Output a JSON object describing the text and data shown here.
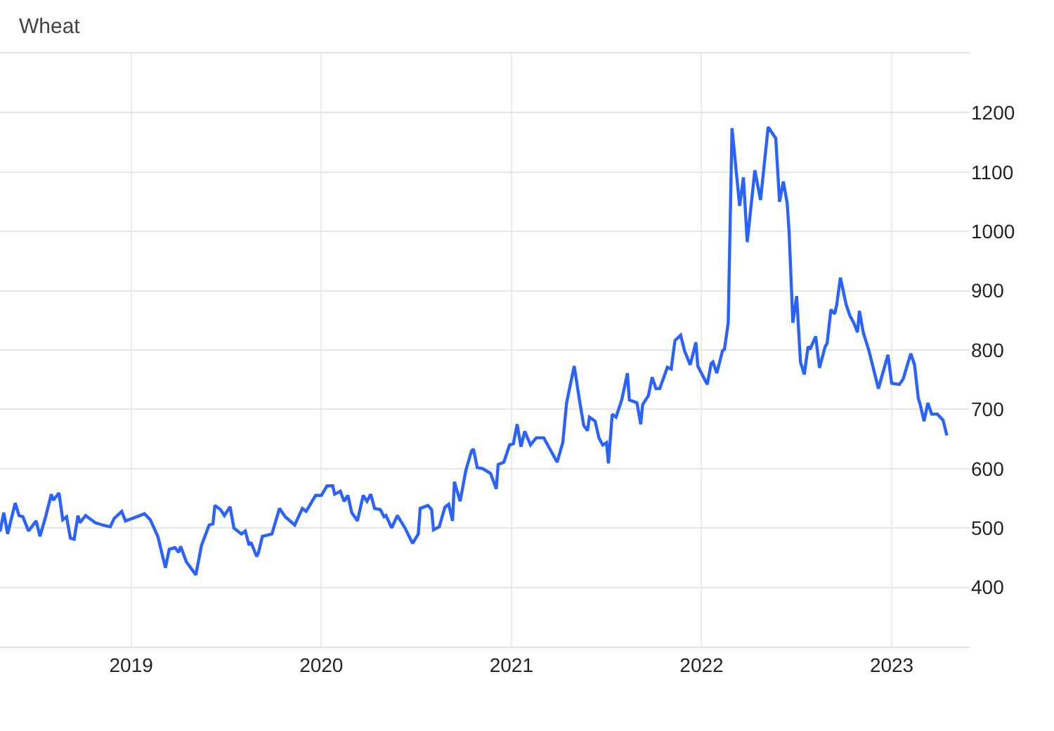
{
  "chart_data": {
    "type": "line",
    "title": "Wheat",
    "x": [
      2018.31,
      2018.33,
      2018.35,
      2018.39,
      2018.41,
      2018.43,
      2018.46,
      2018.5,
      2018.52,
      2018.55,
      2018.58,
      2018.59,
      2018.62,
      2018.64,
      2018.66,
      2018.68,
      2018.7,
      2018.72,
      2018.73,
      2018.76,
      2018.81,
      2018.85,
      2018.89,
      2018.91,
      2018.95,
      2018.97,
      2019.03,
      2019.07,
      2019.1,
      2019.14,
      2019.18,
      2019.2,
      2019.23,
      2019.25,
      2019.26,
      2019.29,
      2019.34,
      2019.37,
      2019.41,
      2019.43,
      2019.44,
      2019.47,
      2019.49,
      2019.52,
      2019.54,
      2019.58,
      2019.6,
      2019.62,
      2019.63,
      2019.66,
      2019.67,
      2019.69,
      2019.74,
      2019.78,
      2019.81,
      2019.86,
      2019.9,
      2019.92,
      2019.97,
      2020.0,
      2020.03,
      2020.06,
      2020.07,
      2020.1,
      2020.12,
      2020.14,
      2020.16,
      2020.19,
      2020.22,
      2020.24,
      2020.26,
      2020.28,
      2020.31,
      2020.33,
      2020.34,
      2020.37,
      2020.4,
      2020.44,
      2020.48,
      2020.51,
      2020.52,
      2020.56,
      2020.58,
      2020.59,
      2020.62,
      2020.65,
      2020.67,
      2020.69,
      2020.7,
      2020.73,
      2020.76,
      2020.79,
      2020.8,
      2020.82,
      2020.85,
      2020.89,
      2020.92,
      2020.93,
      2020.96,
      2020.99,
      2021.01,
      2021.03,
      2021.05,
      2021.07,
      2021.1,
      2021.13,
      2021.17,
      2021.24,
      2021.27,
      2021.29,
      2021.33,
      2021.36,
      2021.38,
      2021.4,
      2021.41,
      2021.44,
      2021.46,
      2021.48,
      2021.5,
      2021.51,
      2021.53,
      2021.55,
      2021.58,
      2021.61,
      2021.62,
      2021.66,
      2021.68,
      2021.69,
      2021.72,
      2021.74,
      2021.76,
      2021.78,
      2021.82,
      2021.84,
      2021.86,
      2021.89,
      2021.91,
      2021.94,
      2021.97,
      2021.98,
      2022.03,
      2022.05,
      2022.06,
      2022.08,
      2022.11,
      2022.12,
      2022.14,
      2022.16,
      2022.2,
      2022.22,
      2022.24,
      2022.28,
      2022.31,
      2022.35,
      2022.39,
      2022.41,
      2022.43,
      2022.45,
      2022.46,
      2022.48,
      2022.5,
      2022.52,
      2022.54,
      2022.56,
      2022.57,
      2022.6,
      2022.62,
      2022.65,
      2022.66,
      2022.68,
      2022.7,
      2022.71,
      2022.73,
      2022.76,
      2022.78,
      2022.8,
      2022.82,
      2022.83,
      2022.85,
      2022.88,
      2022.93,
      2022.98,
      2023.0,
      2023.04,
      2023.06,
      2023.1,
      2023.12,
      2023.14,
      2023.15,
      2023.17,
      2023.19,
      2023.21,
      2023.24,
      2023.27,
      2023.29
    ],
    "series": [
      {
        "color": "#2962ff",
        "values": [
          494,
          526,
          490,
          542,
          521,
          519,
          495,
          512,
          486,
          519,
          557,
          547,
          559,
          514,
          519,
          483,
          481,
          521,
          509,
          521,
          509,
          505,
          502,
          516,
          528,
          512,
          519,
          524,
          514,
          486,
          433,
          464,
          467,
          459,
          469,
          443,
          421,
          471,
          505,
          507,
          538,
          531,
          521,
          536,
          500,
          490,
          495,
          471,
          476,
          452,
          459,
          486,
          490,
          533,
          519,
          505,
          533,
          528,
          555,
          555,
          571,
          571,
          557,
          562,
          545,
          555,
          526,
          512,
          555,
          545,
          557,
          533,
          531,
          519,
          521,
          500,
          521,
          500,
          474,
          490,
          533,
          538,
          531,
          497,
          502,
          535,
          540,
          512,
          578,
          545,
          597,
          630,
          633,
          602,
          600,
          592,
          566,
          607,
          611,
          640,
          642,
          675,
          637,
          663,
          640,
          652,
          652,
          611,
          644,
          711,
          773,
          711,
          673,
          664,
          687,
          680,
          652,
          640,
          644,
          609,
          692,
          687,
          716,
          761,
          716,
          711,
          675,
          708,
          723,
          754,
          735,
          735,
          771,
          768,
          816,
          825,
          799,
          775,
          813,
          773,
          742,
          777,
          780,
          761,
          799,
          801,
          846,
          1174,
          1043,
          1091,
          982,
          1103,
          1053,
          1176,
          1157,
          1050,
          1084,
          1048,
          1000,
          846,
          891,
          780,
          759,
          806,
          801,
          823,
          770,
          806,
          811,
          868,
          861,
          875,
          922,
          877,
          858,
          846,
          830,
          866,
          830,
          799,
          735,
          792,
          744,
          742,
          751,
          794,
          775,
          718,
          708,
          680,
          711,
          692,
          692,
          682,
          656
        ]
      }
    ],
    "xlim": [
      2018.31,
      2023.41
    ],
    "xticks": [
      2019,
      2020,
      2021,
      2022,
      2023
    ],
    "ylim": [
      300,
      1300
    ],
    "yticks": [
      400,
      500,
      600,
      700,
      800,
      900,
      1000,
      1100,
      1200
    ],
    "grid": true,
    "marker": "none",
    "line_style": "solid"
  }
}
